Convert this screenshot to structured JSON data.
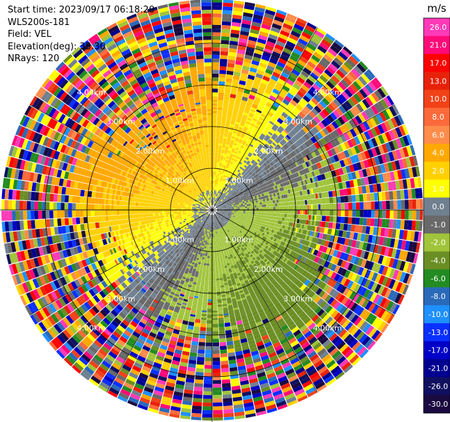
{
  "header": {
    "start_time": "Start time: 2023/09/17 06:18:20",
    "instrument": "WLS200s-181",
    "field": "Field: VEL",
    "elevation": "Elevation(deg): 35.30",
    "nrays": "NRays: 120"
  },
  "chart_data": {
    "type": "heatmap",
    "projection": "polar-ppi",
    "field": "VEL",
    "n_rays": 120,
    "range_rings_km": [
      1.0,
      2.0,
      3.0,
      4.0
    ],
    "ring_labels": [
      "1.00km",
      "2.00km",
      "3.00km",
      "4.00km"
    ],
    "colorbar": {
      "unit": "m/s",
      "ticks": [
        "26.0",
        "21.0",
        "17.0",
        "13.0",
        "10.0",
        "8.0",
        "6.0",
        "4.0",
        "2.0",
        "1.0",
        "0.0",
        "-1.0",
        "-2.0",
        "-4.0",
        "-6.0",
        "-8.0",
        "-10.0",
        "-13.0",
        "-17.0",
        "-21.0",
        "-26.0",
        "-30.0"
      ],
      "colors": [
        "#ff3ab8",
        "#ff0a78",
        "#ff0000",
        "#e8220a",
        "#f14218",
        "#fa6a3a",
        "#ff8c4a",
        "#ffa800",
        "#ffd000",
        "#ffff00",
        "#708090",
        "#696969",
        "#a0c43a",
        "#6b8e23",
        "#228b22",
        "#2a6aba",
        "#1e90ff",
        "#0a30ff",
        "#0000c8",
        "#000090",
        "#101060",
        "#1a0a40"
      ]
    }
  }
}
